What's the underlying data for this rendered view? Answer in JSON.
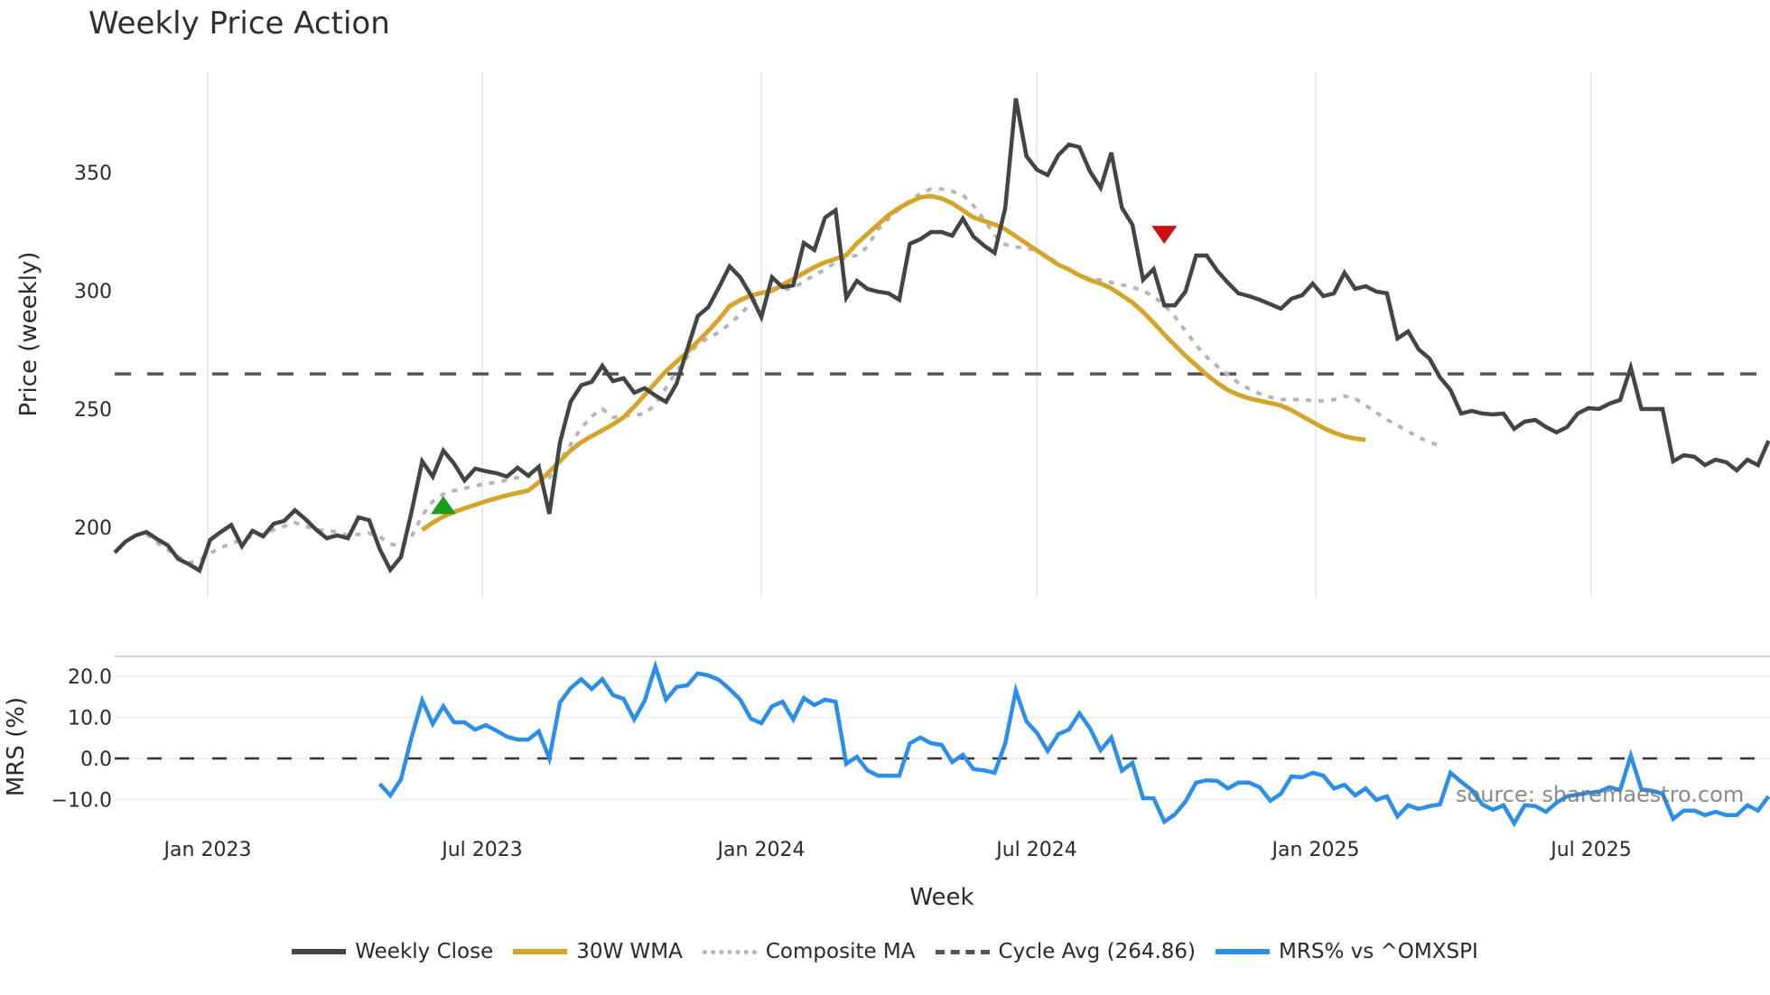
{
  "title": "Weekly Price Action",
  "watermark": "source: sharemaestro.com",
  "colors": {
    "close": "#444444",
    "wma": "#D4A52A",
    "composite": "#b5b5b5",
    "cycle": "#555555",
    "mrs": "#2B8EE8",
    "buy_marker": "#1a9e1a",
    "sell_marker": "#cc1111",
    "grid": "#e8ecf2"
  },
  "legend": [
    {
      "label": "Weekly Close",
      "style": "close"
    },
    {
      "label": "30W WMA",
      "style": "wma"
    },
    {
      "label": "Composite MA",
      "style": "comp"
    },
    {
      "label": "Cycle Avg (264.86)",
      "style": "cycle"
    },
    {
      "label": "MRS% vs ^OMXSPI",
      "style": "mrs"
    }
  ],
  "chart_data": [
    {
      "type": "line",
      "title": "Weekly Price Action",
      "xlabel": "Week",
      "ylabel": "Price (weekly)",
      "ylim": [
        172,
        393
      ],
      "yticks": [
        200,
        250,
        300,
        350
      ],
      "xticks": [
        "Jan 2023",
        "Jul 2023",
        "Jan 2024",
        "Jul 2024",
        "Jan 2025",
        "Jul 2025"
      ],
      "grid": true,
      "legend_position": "bottom",
      "hline": {
        "name": "Cycle Avg (264.86)",
        "value": 264.86
      },
      "x_start": "2022-11-01",
      "x_step": "1 week",
      "series": [
        {
          "name": "Weekly Close",
          "start_index": 0,
          "values": [
            189.3,
            193.9,
            196.6,
            198,
            195,
            192.4,
            186.6,
            184.4,
            181.7,
            194.7,
            198,
            201,
            192,
            198.5,
            196.2,
            201.5,
            202.7,
            207.2,
            203.4,
            199,
            195.4,
            196.6,
            195.4,
            204.2,
            203,
            190.8,
            182,
            187.4,
            206.5,
            227.9,
            221.4,
            232.4,
            227,
            219.8,
            224.8,
            223.7,
            222.9,
            221.4,
            225.2,
            221.8,
            225.6,
            205.7,
            235.9,
            253,
            260,
            261.5,
            268.3,
            261.8,
            263,
            256.9,
            258.8,
            255.7,
            253,
            260.7,
            275.2,
            289.3,
            293.1,
            301.5,
            310.3,
            305.7,
            298.1,
            288.9,
            305.7,
            301.5,
            302.3,
            320.2,
            317.2,
            330.9,
            334,
            297,
            304.2,
            300.8,
            299.6,
            298.9,
            296.2,
            319.8,
            321.8,
            324.8,
            324.8,
            323.3,
            330.5,
            322.9,
            319.1,
            316,
            335.1,
            381.3,
            356.9,
            351.1,
            348.9,
            357.3,
            361.8,
            360.7,
            350.4,
            343.5,
            358.4,
            335.1,
            327.9,
            304.6,
            309.2,
            293.8,
            293.8,
            299.6,
            314.9,
            314.9,
            308.4,
            303.4,
            298.9,
            297.7,
            296.2,
            294.3,
            292.4,
            296.6,
            298.1,
            303,
            297.7,
            298.9,
            307.6,
            300.8,
            301.9,
            299.6,
            298.9,
            279.8,
            282.8,
            275.2,
            271.4,
            263.4,
            258,
            248.1,
            249.2,
            248.1,
            247.7,
            248.1,
            241.6,
            244.7,
            245.4,
            242.4,
            240.1,
            242.4,
            248.1,
            250.4,
            250,
            252.3,
            253.8,
            267.6,
            250,
            250,
            250,
            227.9,
            230.5,
            229.8,
            226.3,
            228.6,
            227.5,
            224.1,
            228.6,
            226.3,
            236.6
          ]
        },
        {
          "name": "30W WMA",
          "start_index": 29,
          "values": [
            198.9,
            202,
            204.5,
            206.5,
            208,
            209.5,
            211,
            212.3,
            213.5,
            214.5,
            215.5,
            219,
            223.5,
            228,
            232.5,
            236,
            238.5,
            241,
            243.5,
            246.5,
            251,
            256,
            261,
            266,
            270,
            274,
            278.5,
            283,
            288,
            293.5,
            296,
            298,
            299,
            300,
            302.5,
            305,
            307.5,
            310,
            312,
            313.5,
            315,
            320,
            324,
            328,
            332,
            335,
            337.5,
            339.5,
            340,
            339,
            337,
            334,
            331,
            329.5,
            328,
            326,
            323,
            320,
            317,
            314,
            311,
            309,
            306.5,
            304.5,
            303,
            301,
            298,
            295,
            291,
            286.5,
            281.5,
            277,
            272.5,
            268.5,
            264.5,
            261,
            258,
            256,
            254.5,
            253.5,
            252.5,
            251.5,
            249.5,
            247,
            244.5,
            242,
            240,
            238.5,
            237.5,
            237
          ]
        },
        {
          "name": "Composite MA",
          "start_index": 0,
          "values": [
            null,
            null,
            null,
            197,
            193.5,
            190.5,
            187.5,
            185,
            186,
            189,
            191.5,
            193,
            195,
            196,
            197,
            199,
            200.5,
            202,
            200.5,
            199,
            198.5,
            198,
            196.5,
            197,
            197.5,
            196,
            193,
            192,
            196,
            205,
            211,
            214,
            215.5,
            216.5,
            217.5,
            218.5,
            219,
            220,
            221,
            222,
            219,
            221,
            228,
            235,
            242,
            247,
            250,
            246.5,
            247,
            247.5,
            248,
            252,
            259,
            266,
            272,
            277.5,
            280,
            282.5,
            286,
            290,
            294.5,
            299,
            301,
            300.5,
            301,
            304,
            306.5,
            309,
            312,
            314,
            315,
            318.5,
            326,
            330.5,
            334.5,
            338,
            341,
            343,
            343,
            342,
            340.5,
            336,
            330,
            323.5,
            319.5,
            318.5,
            318,
            317,
            314.5,
            311.5,
            308.5,
            306.5,
            305,
            304.5,
            303.5,
            302.5,
            301.5,
            300,
            297.5,
            294,
            289,
            283,
            277,
            272,
            268,
            264.5,
            261,
            258.5,
            256.5,
            255,
            254,
            254,
            254,
            253.5,
            253.5,
            254,
            255.5,
            254.5,
            251.5,
            248.5,
            245.5,
            243,
            240.5,
            238,
            236,
            234.5
          ]
        }
      ],
      "markers": [
        {
          "type": "buy",
          "shape": "triangle-up",
          "index": 31,
          "y": 209
        },
        {
          "type": "sell",
          "shape": "triangle-down",
          "index": 99,
          "y": 324
        }
      ]
    },
    {
      "type": "line",
      "title": "",
      "xlabel": "Week",
      "ylabel": "MRS (%)",
      "ylim": [
        -17,
        26
      ],
      "yticks": [
        -10.0,
        0.0,
        10.0,
        20.0
      ],
      "ytick_labels": [
        "−10.0",
        "0.0",
        "10.0",
        "20.0"
      ],
      "hline": {
        "value": 0.0
      },
      "series": [
        {
          "name": "MRS% vs ^OMXSPI",
          "start_index": 25,
          "values": [
            -6.2,
            -9,
            -5.1,
            5.1,
            14.1,
            8.4,
            12.7,
            8.8,
            8.8,
            7,
            8.1,
            6.8,
            5.3,
            4.6,
            4.6,
            6.6,
            0,
            13.6,
            17.1,
            19.3,
            16.9,
            19.3,
            15.4,
            14.5,
            9.5,
            14.1,
            22.4,
            14.3,
            17.4,
            17.8,
            20.7,
            20.2,
            19.1,
            16.9,
            14.3,
            9.7,
            8.6,
            12.7,
            13.8,
            9.5,
            14.7,
            13,
            14.3,
            13.8,
            -1.3,
            0.4,
            -2.9,
            -4.2,
            -4.2,
            -4.2,
            3.7,
            5.1,
            3.7,
            3.3,
            -0.9,
            0.9,
            -2.6,
            -2.9,
            -3.5,
            3.7,
            16.5,
            9,
            6.2,
            1.8,
            5.9,
            7,
            11,
            7.3,
            2,
            5.1,
            -3,
            -1.1,
            -9.7,
            -9.7,
            -15.4,
            -13.6,
            -10.5,
            -5.9,
            -5.3,
            -5.5,
            -7.3,
            -5.9,
            -5.9,
            -7,
            -10.3,
            -8.6,
            -4.4,
            -4.6,
            -3.5,
            -4.2,
            -7.3,
            -6.4,
            -9,
            -7.3,
            -10.1,
            -9.2,
            -14.1,
            -11.4,
            -12.3,
            -11.6,
            -11.2,
            -3.5,
            -5.7,
            -7.7,
            -11.2,
            -12.5,
            -11.4,
            -15.8,
            -11.4,
            -11.6,
            -13,
            -10.8,
            -9.2,
            -8.8,
            -8.4,
            -8.1,
            -7,
            -7.7,
            0.7,
            -7.5,
            -7.9,
            -8.6,
            -14.7,
            -12.7,
            -12.7,
            -13.8,
            -13,
            -13.8,
            -13.8,
            -11.4,
            -12.7,
            -9.2
          ]
        }
      ]
    }
  ]
}
